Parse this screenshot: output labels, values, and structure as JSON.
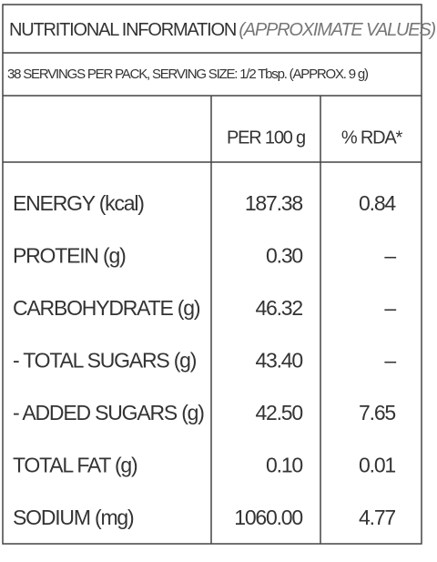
{
  "title": {
    "main": "NUTRITIONAL INFORMATION",
    "note": "(APPROXIMATE VALUES)"
  },
  "serving": "38 SERVINGS PER PACK, SERVING SIZE: 1/2 Tbsp. (APPROX. 9 g)",
  "table": {
    "headers": [
      "PER 100 g",
      "% RDA*"
    ],
    "rows": [
      [
        "ENERGY (kcal)",
        "187.38",
        "0.84"
      ],
      [
        "PROTEIN (g)",
        "0.30",
        "–"
      ],
      [
        "CARBOHYDRATE (g)",
        "46.32",
        "–"
      ],
      [
        "- TOTAL SUGARS (g)",
        "43.40",
        "–"
      ],
      [
        "- ADDED SUGARS (g)",
        "42.50",
        "7.65"
      ],
      [
        "TOTAL FAT (g)",
        "0.10",
        "0.01"
      ],
      [
        "SODIUM (mg)",
        "1060.00",
        "4.77"
      ]
    ]
  }
}
